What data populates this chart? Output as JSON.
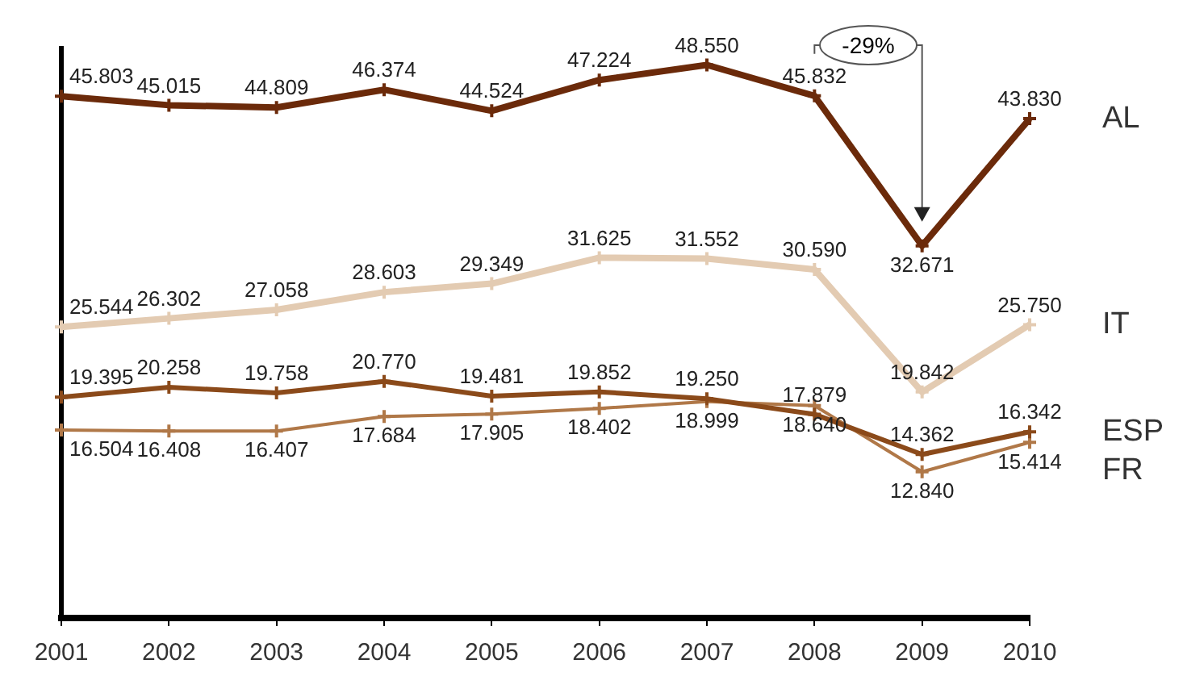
{
  "chart_data": {
    "type": "line",
    "categories": [
      "2001",
      "2002",
      "2003",
      "2004",
      "2005",
      "2006",
      "2007",
      "2008",
      "2009",
      "2010"
    ],
    "series": [
      {
        "name": "AL",
        "color": "#6b2a0a",
        "values": [
          45.803,
          45.015,
          44.809,
          46.374,
          44.524,
          47.224,
          48.55,
          45.832,
          32.671,
          43.83
        ],
        "value_labels": [
          "45.803",
          "45.015",
          "44.809",
          "46.374",
          "44.524",
          "47.224",
          "48.550",
          "45.832",
          "32.671",
          "43.830"
        ]
      },
      {
        "name": "IT",
        "color": "#e3cbb2",
        "values": [
          25.544,
          26.302,
          27.058,
          28.603,
          29.349,
          31.625,
          31.552,
          30.59,
          19.842,
          25.75
        ],
        "value_labels": [
          "25.544",
          "26.302",
          "27.058",
          "28.603",
          "29.349",
          "31.625",
          "31.552",
          "30.590",
          "19.842",
          "25.750"
        ]
      },
      {
        "name": "ESP",
        "color": "#8b4a1a",
        "values": [
          19.395,
          20.258,
          19.758,
          20.77,
          19.481,
          19.852,
          19.25,
          17.879,
          14.362,
          16.342
        ],
        "value_labels": [
          "19.395",
          "20.258",
          "19.758",
          "20.770",
          "19.481",
          "19.852",
          "19.250",
          "17.879",
          "14.362",
          "16.342"
        ]
      },
      {
        "name": "FR",
        "color": "#b07848",
        "values": [
          16.504,
          16.408,
          16.407,
          17.684,
          17.905,
          18.402,
          18.999,
          18.64,
          12.84,
          15.414
        ],
        "value_labels": [
          "16.504",
          "16.408",
          "16.407",
          "17.684",
          "17.905",
          "18.402",
          "18.999",
          "18.640",
          "12.840",
          "15.414"
        ]
      }
    ],
    "legend": false,
    "marker": "cross",
    "line_style": "solid",
    "annotations": [
      "-29%"
    ]
  }
}
